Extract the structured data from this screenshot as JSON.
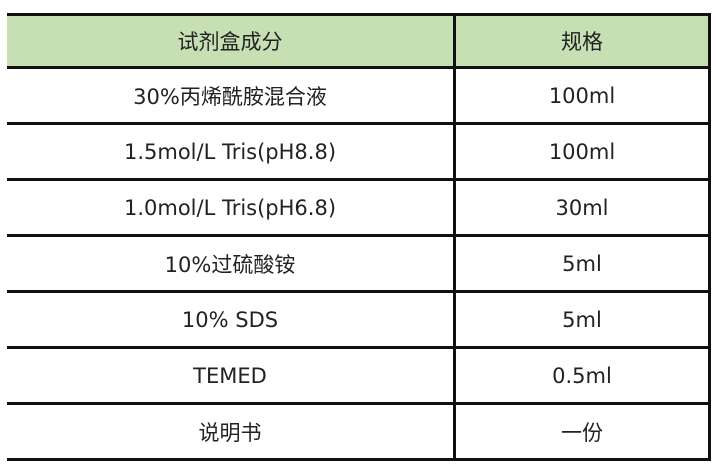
{
  "header": {
    "col1": "试剂盒成分",
    "col2": "规格"
  },
  "header_color": "#c6e0b4",
  "rows": [
    {
      "component": "30%丙烯酰胺混合液",
      "spec": "100ml"
    },
    {
      "component": "1.5mol/L Tris(pH8.8)",
      "spec": "100ml"
    },
    {
      "component": "1.0mol/L Tris(pH6.8)",
      "spec": "30ml"
    },
    {
      "component": "10%过硫酸铵",
      "spec": "5ml"
    },
    {
      "component": "10% SDS",
      "spec": "5ml"
    },
    {
      "component": "TEMED",
      "spec": "0.5ml"
    },
    {
      "component": "说明书",
      "spec": "一份"
    }
  ]
}
